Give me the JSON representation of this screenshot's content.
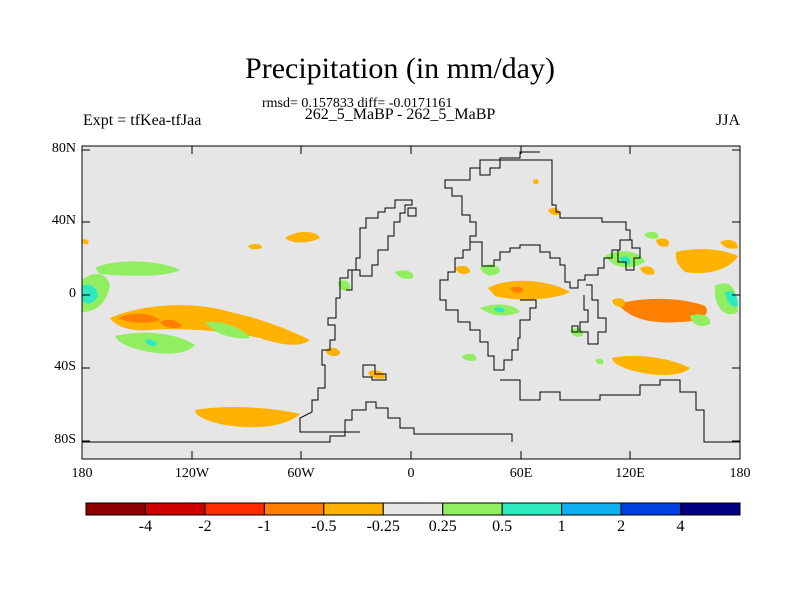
{
  "title": "Precipitation (in mm/day)",
  "stats": "rmsd= 0.157833 diff= -0.0171161",
  "subtitle": "262_5_MaBP - 262_5_MaBP",
  "left_label": "Expt = tfKea-tfJaa",
  "right_label": "JJA",
  "lat_ticks": [
    "80N",
    "40N",
    "0",
    "40S",
    "80S"
  ],
  "lon_ticks": [
    "180",
    "120W",
    "60W",
    "0",
    "60E",
    "120E",
    "180"
  ],
  "colorbar": {
    "colors": [
      "#8b0000",
      "#cc0000",
      "#ff2a00",
      "#ff7f00",
      "#ffb300",
      "#e6e6e6",
      "#90ee60",
      "#2ee8c0",
      "#10b0f0",
      "#0040e0",
      "#000080"
    ],
    "labels": [
      "-4",
      "-2",
      "-1",
      "-0.5",
      "-0.25",
      "0.25",
      "0.5",
      "1",
      "2",
      "4"
    ]
  },
  "background_color": "#e6e6e6"
}
